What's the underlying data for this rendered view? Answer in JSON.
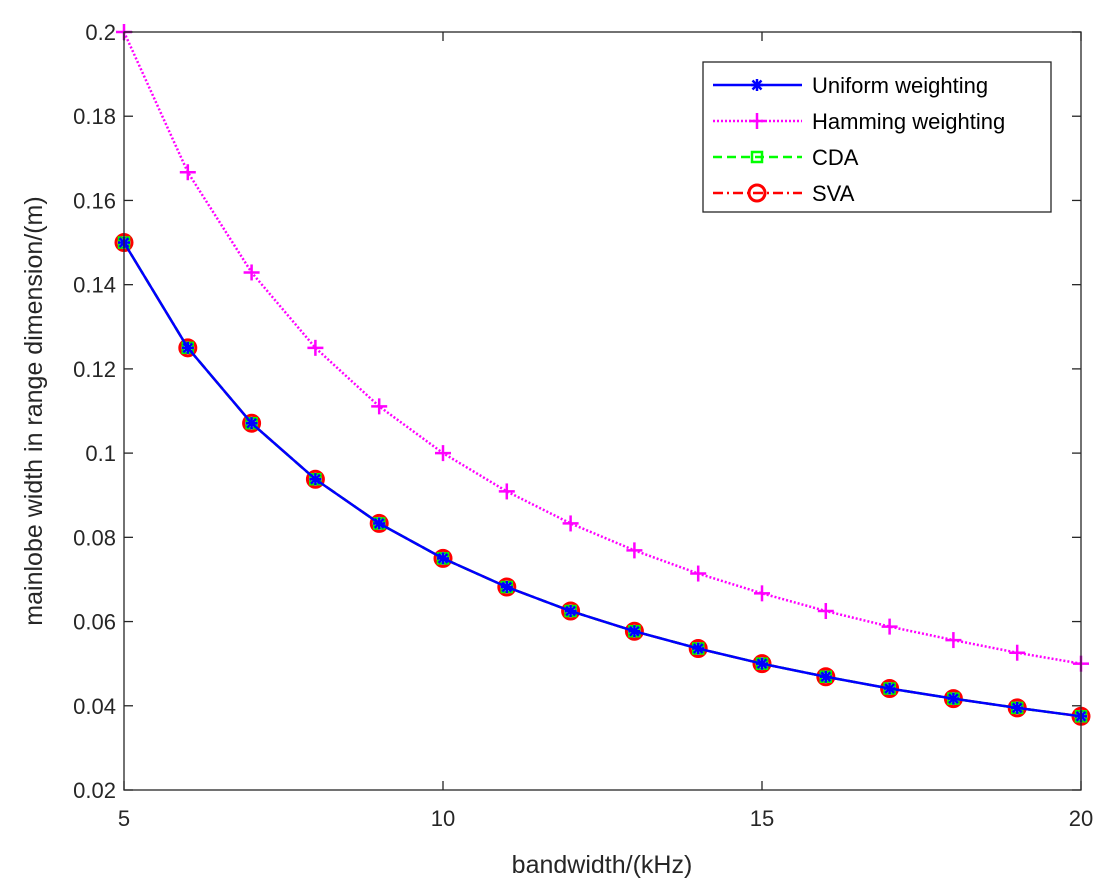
{
  "chart_data": {
    "type": "line",
    "title": "",
    "xlabel": "bandwidth/(kHz)",
    "ylabel": "mainlobe width in range dimension/(m)",
    "xlim": [
      5,
      20
    ],
    "ylim": [
      0.02,
      0.2
    ],
    "grid": false,
    "legend_position": "top-right",
    "xticks": [
      5,
      10,
      15,
      20
    ],
    "xtick_labels": [
      "5",
      "10",
      "15",
      "20"
    ],
    "yticks": [
      0.02,
      0.04,
      0.06,
      0.08,
      0.1,
      0.12,
      0.14,
      0.16,
      0.18,
      0.2
    ],
    "ytick_labels": [
      "0.02",
      "0.04",
      "0.06",
      "0.08",
      "0.1",
      "0.12",
      "0.14",
      "0.16",
      "0.18",
      "0.2"
    ],
    "x": [
      5,
      6,
      7,
      8,
      9,
      10,
      11,
      12,
      13,
      14,
      15,
      16,
      17,
      18,
      19,
      20
    ],
    "series": [
      {
        "name": "Uniform weighting",
        "color": "#0000ff",
        "line_style": "solid",
        "marker": "asterisk",
        "values": [
          0.15,
          0.125,
          0.1071,
          0.0938,
          0.0833,
          0.075,
          0.0682,
          0.0625,
          0.0577,
          0.0536,
          0.05,
          0.0469,
          0.0441,
          0.0417,
          0.0395,
          0.0375
        ]
      },
      {
        "name": "Hamming weighting",
        "color": "#ff00ff",
        "line_style": "dotted",
        "marker": "plus",
        "values": [
          0.2,
          0.1667,
          0.1429,
          0.125,
          0.1111,
          0.1,
          0.0909,
          0.0833,
          0.0769,
          0.0714,
          0.0667,
          0.0625,
          0.0588,
          0.0556,
          0.0526,
          0.05
        ]
      },
      {
        "name": "CDA",
        "color": "#00ff00",
        "line_style": "dashed",
        "marker": "square",
        "values": [
          0.15,
          0.125,
          0.1071,
          0.0938,
          0.0833,
          0.075,
          0.0682,
          0.0625,
          0.0577,
          0.0536,
          0.05,
          0.0469,
          0.0441,
          0.0417,
          0.0395,
          0.0375
        ]
      },
      {
        "name": "SVA",
        "color": "#ff0000",
        "line_style": "dashdot",
        "marker": "circle",
        "values": [
          0.15,
          0.125,
          0.1071,
          0.0938,
          0.0833,
          0.075,
          0.0682,
          0.0625,
          0.0577,
          0.0536,
          0.05,
          0.0469,
          0.0441,
          0.0417,
          0.0395,
          0.0375
        ]
      }
    ]
  }
}
